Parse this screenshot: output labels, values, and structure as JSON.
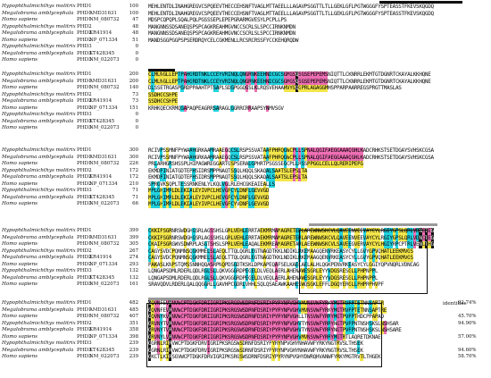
{
  "colors": {
    "black_bg": "#111111",
    "cyan": "#22d3e0",
    "magenta": "#ee6fb4",
    "yellow": "#f4e64a",
    "gray": "#c9c9c9",
    "marker_gray": "#9a9a9a"
  },
  "identity_header": "identities",
  "blocks": [
    {
      "rows": [
        {
          "species": "Hypophthalmichthys molitrix",
          "gene": "PHD1",
          "accession": "",
          "pos": "100",
          "seq": "MEHLENTDLINAHGREGVCSPQEEVTHECCEHSNFTVAGLMTTAEELLLAGAVPSGGTTLTLLGEKLGFLPGTWGGGFYSPTEASSTFKEVSKQGDQ",
          "pid": ""
        },
        {
          "species": "Megalobrama amblycephala",
          "gene": "PHD1",
          "accession": "AMD31631",
          "pos": "100",
          "seq": "MEHLENTDLINAHGREGVCSPQEEVTHECCEHSNFTVAGLMTTAEELLLAGAVPSGGTTLTLLGEKLGFLPGTWGGGFYSPTEASSTFKEVSKQGDQ",
          "pid": ""
        },
        {
          "species": "Homo sapiens",
          "gene": "PHD1",
          "accession": "NM_080732",
          "pos": "47",
          "seq": "MDSPCQPQPLSQALPQLPGSSSEPLEPEPGRARMGVESYLPCPLLPS",
          "pid": ""
        },
        {
          "species": "Hypophthalmichthys molitrix",
          "gene": "PHD2",
          "accession": "",
          "pos": "48",
          "seq": "MANGNNSSDSANEQSPSPCAGKREAHMGVNCCSCRLSLSPCCIRNKNMDN",
          "pid": ""
        },
        {
          "species": "Megalobrama amblycephala",
          "gene": "PHD2",
          "accession": "KR41914",
          "pos": "48",
          "seq": "MANGNNSSDSANEQSPSPCAGKREAHMGVNCCSCRLSLSPCCIRNKNMDN",
          "pid": ""
        },
        {
          "species": "Homo sapiens",
          "gene": "PHD2",
          "accession": "NP_071334",
          "pos": "51",
          "seq": "MANDSGGPGGPSPSERDRQYCELCGKMENLLRCSRCRSSFYCCKEHQRQDW",
          "pid": ""
        },
        {
          "species": "Hypophthalmichthys molitrix",
          "gene": "PHD3",
          "accession": "",
          "pos": "0",
          "seq": "",
          "pid": ""
        },
        {
          "species": "Megalobrama amblycephala",
          "gene": "PHD3",
          "accession": "KT428345",
          "pos": "0",
          "seq": "",
          "pid": ""
        },
        {
          "species": "Homo sapiens",
          "gene": "PHD3",
          "accession": "NM_022073",
          "pos": "0",
          "seq": "",
          "pid": ""
        }
      ]
    },
    {
      "rows": [
        {
          "species": "Hypophthalmichthys molitrix",
          "gene": "PHD1",
          "accession": "",
          "pos": "200",
          "seq": "CLMLNGLLEPTPAHGRDTNKLCCEYVRINQLQNGRNKEEHNDCGCSGMGSQSGSEPEPEMSNIQTTLCKNRRLEKMTGTDGNRTCKAYALKKHQNE",
          "pid": ""
        },
        {
          "species": "Megalobrama amblycephala",
          "gene": "PHD1",
          "accession": "AMD31631",
          "pos": "200",
          "seq": "CLMLNGLLEPTPAHGRDTNKLCCEYVRINQLQNGRNKEEHNDCGCSGMGSQSGSEPEPEMSNIQTTLCKNRRLEKMTGTDGNRTCKAYALKKHQNE",
          "pid": ""
        },
        {
          "species": "Homo sapiens",
          "gene": "PHD1",
          "accession": "NM_080732",
          "pos": "140",
          "seq": "DLSSETRGASPGRDPPAAHTPTSAPLSDGPGGQGSLKLRQSVEHAAHVYGQGPRLAGAGGMHSPPARPAARREGSPRGTTMASLAS",
          "pid": ""
        },
        {
          "species": "Hypophthalmichthys molitrix",
          "gene": "PHD2",
          "accession": "",
          "pos": "73",
          "seq": "SSDHGCSHPE",
          "pid": ""
        },
        {
          "species": "Megalobrama amblycephala",
          "gene": "PHD2",
          "accession": "KR41914",
          "pos": "73",
          "seq": "SSDHGCSHPE",
          "pid": ""
        },
        {
          "species": "Homo sapiens",
          "gene": "PHD2",
          "accession": "NP_071334",
          "pos": "151",
          "seq": "KRHKQECKRMQGAPAQPEAGRRSARAGLGGRRCRRAAPSYNMVSGV",
          "pid": ""
        },
        {
          "species": "Hypophthalmichthys molitrix",
          "gene": "PHD3",
          "accession": "",
          "pos": "0",
          "seq": "",
          "pid": ""
        },
        {
          "species": "Megalobrama amblycephala",
          "gene": "PHD3",
          "accession": "KT428345",
          "pos": "0",
          "seq": "",
          "pid": ""
        },
        {
          "species": "Homo sapiens",
          "gene": "PHD3",
          "accession": "NM_022073",
          "pos": "0",
          "seq": "",
          "pid": ""
        }
      ]
    },
    {
      "rows": [
        {
          "species": "Hypophthalmichthys molitrix",
          "gene": "PHD1",
          "accession": "",
          "pos": "300",
          "seq": "RCIVPSSMNFPYWAAHGRKAAMRAAEGQCSLRSPSSVATAAFPHRQGWCPLLSPNALQGIFAEGGAAAQGHLKADCRHKSTSETDGAYSVHSKCGSA",
          "pid": ""
        },
        {
          "species": "Megalobrama amblycephala",
          "gene": "PHD1",
          "accession": "AMD31631",
          "pos": "300",
          "seq": "RCIVPSSMNFPYWAAHGRKAAMRAAEGQCSLRSPSSVATAAFPHRQGWCPLLSPNALQGIFAEGGAAAQGHLKADCRHKSTSETDGAYSVHSKCGSA",
          "pid": ""
        },
        {
          "species": "Homo sapiens",
          "gene": "PHD1",
          "accession": "NM_080732",
          "pos": "226",
          "seq": "PRLARHGRSHSSPLHIPAGWREGGARTGSPSERALGPHRTPSGSSEGCPLLRSSPPGGLCELLQLRERIPEPG",
          "pid": ""
        },
        {
          "species": "Hypophthalmichthys molitrix",
          "gene": "PHD2",
          "accession": "",
          "pos": "172",
          "seq": "EKMDPINIATGDTEPHSIDRSMPPNAQTSSQLHQQLSKAQALSAATSLEPSLTA",
          "pid": ""
        },
        {
          "species": "Megalobrama amblycephala",
          "gene": "PHD2",
          "accession": "KR41914",
          "pos": "172",
          "seq": "EKMDPINIATGDTEPHSIDRSMPPNAQTSSQLHQQLSKAQALSAATSLEPSLTA",
          "pid": ""
        },
        {
          "species": "Homo sapiens",
          "gene": "PHD2",
          "accession": "NP_071334",
          "pos": "210",
          "seq": "SPRGVKSQPLTESSRNKENLYLKQLVGLRLEHCGKEAIEALLS",
          "pid": ""
        },
        {
          "species": "Hypophthalmichthys molitrix",
          "gene": "PHD3",
          "accession": "",
          "pos": "71",
          "seq": "MPLGHIMRLDLEKIALEYIVPCLHEVGFCYLDNFLGEVVGD",
          "pid": ""
        },
        {
          "species": "Megalobrama amblycephala",
          "gene": "PHD3",
          "accession": "KT428345",
          "pos": "71",
          "seq": "MPLGHIMRLDLEKIALEYIVPCLHEVGFCYLDNFLGEVVGD",
          "pid": ""
        },
        {
          "species": "Homo sapiens",
          "gene": "PHD3",
          "accession": "NM_022073",
          "pos": "66",
          "seq": "MPLGHIMRLDLEKIALEYIVPCLHEVGFCYVDNFLGEVVGD",
          "pid": ""
        }
      ]
    },
    {
      "rows": [
        {
          "species": "Hypophthalmichthys molitrix",
          "gene": "PHD1",
          "accession": "",
          "pos": "399",
          "seq": "CKKIPSGRNRSWDGHGSRLAGSSHSLGRLVEHLERRTAEKMRMAMAGRETERLAREWNWSKCVLQAVEENVEEVAYCYLRGIYGPSLQRLVDNCTEG",
          "pid": ""
        },
        {
          "species": "Megalobrama amblycephala",
          "gene": "PHD1",
          "accession": "AMD31631",
          "pos": "399",
          "seq": "CKKIPSGRNRSWDGHGSRLAGSSHSLGRLVEHLERRTAEKMRMAMAGRETERLAREWNWSKCVLQAVEENVEEVAYCYLRGIYGPSLQRLVDNCTEG",
          "pid": ""
        },
        {
          "species": "Homo sapiens",
          "gene": "PHD1",
          "accession": "NM_080732",
          "pos": "305",
          "seq": "CKAIPSGRGWVSDWRPLASGTSHSLSPRLVEHLEAQALEKMREAMAGRETARLAEEWNWSKCVLSAVEEGVERVAYCYLHGIYRPCPTRLVENLTHG",
          "pid": ""
        },
        {
          "species": "Hypophthalmichthys molitrix",
          "gene": "PHD2",
          "accession": "",
          "pos": "267",
          "seq": "CAGYSVDCPQNMNSQGKMMELSLAEQLTTQLQGRLEGTNAGDTKKLNDIKLRKEMAAGQENVRKEASYCYLLGVYGPVQHATLEEKMVGS",
          "pid": ""
        },
        {
          "species": "Megalobrama amblycephala",
          "gene": "PHD2",
          "accession": "KR41914",
          "pos": "274",
          "seq": "CAGYSVDCPQNMNSQGKMMELSLAEQLTTQLQGRLEGTNAGDTKKLNDIKLRKEMAAGQENVRKEASYCYLLGVYGPVQHATLEEKMVGS",
          "pid": ""
        },
        {
          "species": "Homo sapiens",
          "gene": "PHD2",
          "accession": "NP_071334",
          "pos": "293",
          "seq": "PAKASLKNPSTQMSSNNHQQASRPNQPDSGDTKSKLDPKAPEQAFSELKAELAELALHLQGKPENVRKEASYCYLGGIYQPVNQRLVDNCAG",
          "pid": ""
        },
        {
          "species": "Hypophthalmichthys molitrix",
          "gene": "PHD3",
          "accession": "",
          "pos": "132",
          "seq": "LQNGAPSDMLRDERLQDLRGLSLLQKVGGGRDPEGELDLVEQLAERLAHENAWESGRLEYYVDGSRESGLLPHPNPPL",
          "pid": ""
        },
        {
          "species": "Megalobrama amblycephala",
          "gene": "PHD3",
          "accession": "KT428345",
          "pos": "132",
          "seq": "LQNGAPSDMLRDERLQDLRGLSLLQKVGGGRDPEGELDLVEQLAERLAHENAWESGRLEYYVDGSRESGLLPHPNPPL",
          "pid": ""
        },
        {
          "species": "Homo sapiens",
          "gene": "PHD3",
          "accession": "NM_022073",
          "pos": "161",
          "seq": "SRAVQDVLRDERLQALQQGGRLLGAVHPCGDRLVHHLSQLQSAEAWKAAHESWQSGKLEFFLDGQYERGLLPHPRPHVPF",
          "pid": ""
        }
      ]
    },
    {
      "rows": [
        {
          "species": "Hypophthalmichthys molitrix",
          "gene": "PHD1",
          "accession": "",
          "pos": "482",
          "seq": "GQVNFEVRNVWCPTDGKFDRIIGRIPKSRGSWSDRNFDSRIYPYRYNPVGHVMVNSVWFYRKYMGTRVPPTETNNSAPTR",
          "pid": "92.74%"
        },
        {
          "species": "Megalobrama amblycephala",
          "gene": "PHD1",
          "accession": "AMD31631",
          "pos": "485",
          "seq": "GQVNFEVRNVWCPTDGKFDRIIGRIPKSRGSWSDRNFDSRIYPYRYNPVGHVMVNSVWFYRKYMGTRVPPTETNNSAPTRE",
          "pid": ""
        },
        {
          "species": "Homo sapiens",
          "gene": "PHD1",
          "accession": "NM_080732",
          "pos": "407",
          "seq": "GQVNYKVRNVWCPTDGKFDRIIGRIPKSRGSWSDRNFDSRIYPYRYNPVGHLLTNSVWFYRRYMGTPVPPTHDCPPAPAD",
          "pid": "45.70%"
        },
        {
          "species": "Hypophthalmichthys molitrix",
          "gene": "PHD2",
          "accession": "",
          "pos": "351",
          "seq": "GRVNYTVRNVWCPTDGKFDRIIGRIPKSRGSWSDRNFDSRIYPYRYNPVGHVTYNSVWFYRRYNGTPVPPNTNSHSKSLNSHSAR",
          "pid": "94.90%"
        },
        {
          "species": "Megalobrama amblycephala",
          "gene": "PHD2",
          "accession": "KR41914",
          "pos": "358",
          "seq": "GRVNYTVRNVWCPTDGKFDRIIGRIPKSRGSWSDRNFDSRIYPYRYNPVGHVTYNSVWFYRRYNGTPVPPNTNSHSKSLNSHSARE",
          "pid": ""
        },
        {
          "species": "Homo sapiens",
          "gene": "PHD2",
          "accession": "NP_071334",
          "pos": "398",
          "seq": "GRVNYLVRNVWCPTDGKFDRIIGRIPKSRGSWSDRNFDSRIYPYRYNPVGHVMVNSVWFYRRYMGTRTLAQRETDKNAE",
          "pid": "57.00%"
        },
        {
          "species": "Hypophthalmichthys molitrix",
          "gene": "PHD3",
          "accession": "",
          "pos": "239",
          "seq": "GGRNLRIRVWCPTDGKFDRVIGRIPKSRGSWSDRNFDSRIYPYRYNPVGHYNHAVWFYRKYNGTRVSLTHSEK",
          "pid": ""
        },
        {
          "species": "Megalobrama amblycephala",
          "gene": "PHD3",
          "accession": "KT428345",
          "pos": "239",
          "seq": "GGRNLRIRVWCPTDGKFDRVIGRIPKSRGSWSDRNFDSRIYPYRYNPVGHYNHAVWFYRKYNGTRVSLTHSEK",
          "pid": "94.60%"
        },
        {
          "species": "Homo sapiens",
          "gene": "PHD3",
          "accession": "NM_022073",
          "pos": "239",
          "seq": "GKCTLKIRSGVWCPTDGKFDRVIGRIPKSRGSWSDRNFDSRIYPYRYNPVGHYDWRQHVANWFYRKYMGTRVTLTHGEK",
          "pid": "58.70%"
        }
      ]
    }
  ]
}
